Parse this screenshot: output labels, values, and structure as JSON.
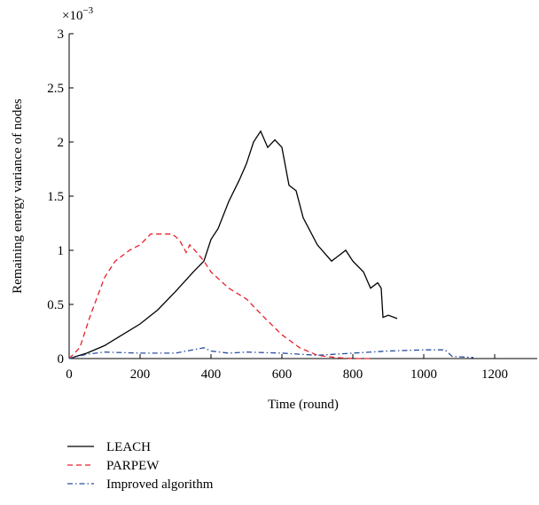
{
  "chart_data": {
    "type": "line",
    "y_label": "Remaining energy variance of nodes",
    "x_label": "Time (round)",
    "y_scale_label": {
      "base": "×10",
      "exponent": "−3"
    },
    "xlim": [
      0,
      1300
    ],
    "xticks": [
      0,
      200,
      400,
      600,
      800,
      1000,
      1200
    ],
    "ylim": [
      0,
      3
    ],
    "yticks": [
      0,
      0.5,
      1,
      1.5,
      2,
      2.5,
      3
    ],
    "series": [
      {
        "name": "LEACH",
        "color": "#000000",
        "dash": "none",
        "x": [
          0,
          50,
          100,
          150,
          200,
          250,
          300,
          350,
          380,
          400,
          420,
          450,
          480,
          500,
          520,
          540,
          560,
          580,
          600,
          620,
          640,
          660,
          700,
          740,
          760,
          780,
          800,
          830,
          850,
          870,
          880,
          885,
          900,
          925
        ],
        "values": [
          0,
          0.05,
          0.12,
          0.22,
          0.32,
          0.45,
          0.62,
          0.8,
          0.9,
          1.1,
          1.2,
          1.45,
          1.65,
          1.8,
          2.0,
          2.1,
          1.95,
          2.02,
          1.95,
          1.6,
          1.55,
          1.3,
          1.05,
          0.9,
          0.95,
          1.0,
          0.9,
          0.8,
          0.65,
          0.7,
          0.65,
          0.38,
          0.4,
          0.37
        ]
      },
      {
        "name": "PARPEW",
        "color": "#e8202a",
        "dash": "6,4",
        "x": [
          0,
          30,
          60,
          100,
          130,
          170,
          200,
          230,
          260,
          290,
          310,
          330,
          340,
          360,
          380,
          400,
          450,
          500,
          550,
          600,
          650,
          700,
          750,
          800,
          850
        ],
        "values": [
          0,
          0.1,
          0.4,
          0.75,
          0.9,
          1.0,
          1.05,
          1.15,
          1.15,
          1.15,
          1.1,
          0.98,
          1.05,
          0.98,
          0.9,
          0.8,
          0.65,
          0.55,
          0.38,
          0.22,
          0.1,
          0.03,
          0.01,
          0,
          0
        ]
      },
      {
        "name": "Improved algorithm",
        "color": "#2a4fa0",
        "dash": "6,3,1.5,3",
        "x": [
          0,
          50,
          100,
          200,
          300,
          380,
          400,
          450,
          500,
          600,
          700,
          800,
          900,
          1000,
          1060,
          1080,
          1140
        ],
        "values": [
          0,
          0.04,
          0.06,
          0.05,
          0.05,
          0.1,
          0.07,
          0.05,
          0.06,
          0.05,
          0.03,
          0.05,
          0.07,
          0.08,
          0.08,
          0.02,
          0.01
        ]
      }
    ]
  }
}
